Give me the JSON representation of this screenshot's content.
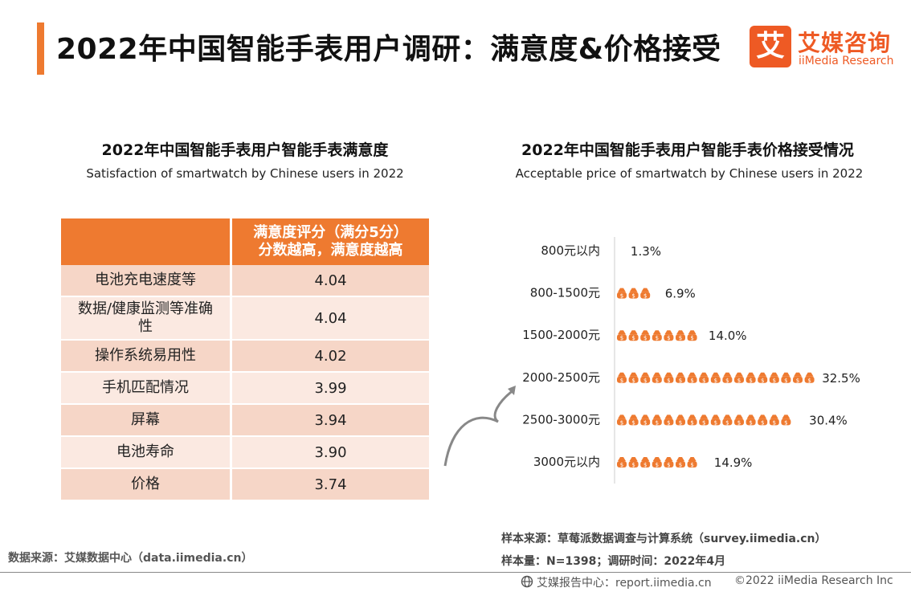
{
  "header": {
    "title": "2022年中国智能手表用户调研：满意度&价格接受",
    "logo_cn": "艾媒咨询",
    "logo_en": "iiMedia Research",
    "logo_mark": "艾"
  },
  "left_panel": {
    "title": "2022年中国智能手表用户智能手表满意度",
    "subtitle": "Satisfaction of smartwatch by Chinese users in 2022",
    "header_line1": "满意度评分（满分5分）",
    "header_line2": "分数越高，满意度越高",
    "rows": [
      {
        "name": "电池充电速度等",
        "value": "4.04"
      },
      {
        "name": "数据/健康监测等准确性",
        "value": "4.04"
      },
      {
        "name": "操作系统易用性",
        "value": "4.02"
      },
      {
        "name": "手机匹配情况",
        "value": "3.99"
      },
      {
        "name": "屏幕",
        "value": "3.94"
      },
      {
        "name": "电池寿命",
        "value": "3.90"
      },
      {
        "name": "价格",
        "value": "3.74"
      }
    ]
  },
  "right_panel": {
    "title": "2022年中国智能手表用户智能手表价格接受情况",
    "subtitle": "Acceptable price of smartwatch by Chinese users in 2022"
  },
  "chart_data": {
    "type": "bar",
    "orientation": "horizontal",
    "categories": [
      "800元以内",
      "800-1500元",
      "1500-2000元",
      "2000-2500元",
      "2500-3000元",
      "3000元以内"
    ],
    "values": [
      1.3,
      6.9,
      14.0,
      32.5,
      30.4,
      14.9
    ],
    "value_labels": [
      "1.3%",
      "6.9%",
      "14.0%",
      "32.5%",
      "30.4%",
      "14.9%"
    ],
    "unit": "%",
    "title": "2022年中国智能手表用户智能手表价格接受情况",
    "bar_style": "money-bag pictograph",
    "bar_color": "#ee7a30"
  },
  "footer": {
    "source_left": "数据来源：艾媒数据中心（data.iimedia.cn）",
    "sample_source": "样本来源：草莓派数据调查与计算系统（survey.iimedia.cn）",
    "sample_size": "样本量：N=1398；调研时间：2022年4月",
    "report_center": "艾媒报告中心：report.iimedia.cn",
    "copyright": "©2022 iiMedia Research Inc"
  },
  "colors": {
    "accent": "#ee7a30",
    "brand": "#ee5a24",
    "row_dark": "#f6d6c7",
    "row_light": "#fbe9e1"
  }
}
